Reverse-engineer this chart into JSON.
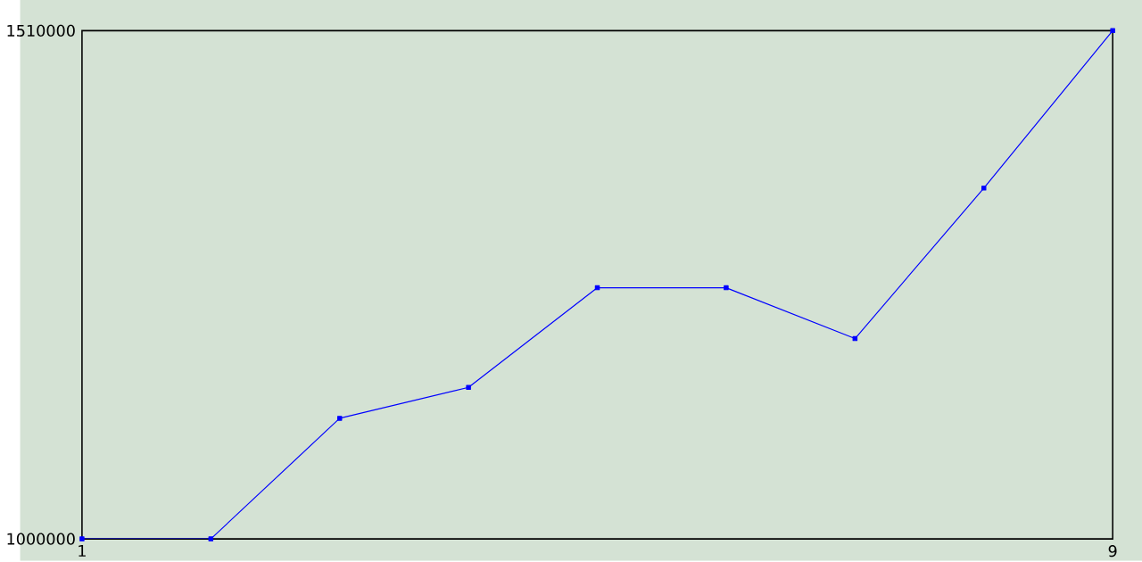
{
  "chart_data": {
    "type": "line",
    "x": [
      1,
      2,
      3,
      4,
      5,
      6,
      7,
      8,
      9
    ],
    "series": [
      {
        "color": "#0000ff",
        "values": [
          1000000,
          1000000,
          1121000,
          1152000,
          1252000,
          1252000,
          1201000,
          1352000,
          1510000
        ]
      }
    ],
    "xlim": [
      1,
      9
    ],
    "xticks": [
      1,
      9
    ],
    "ylim": [
      1000000,
      1510000
    ],
    "yticks": [
      1000000,
      1510000
    ],
    "marker": "square",
    "line_style": "solid"
  }
}
